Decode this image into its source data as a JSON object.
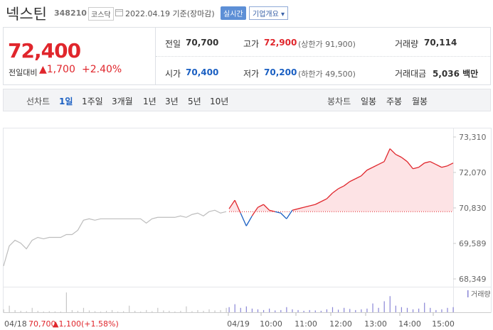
{
  "header": {
    "title": "넥스틴",
    "code": "348210",
    "market": "코스닥",
    "date": "2022.04.19 기준(장마감)",
    "realtime": "실시간",
    "company": "기업개요"
  },
  "summary": {
    "price": "72,400",
    "change_label": "전일대비",
    "change": "▲1,700",
    "change_pct": "+2.40%",
    "rows": [
      [
        {
          "label": "전일",
          "value": "70,700"
        },
        {
          "label": "고가",
          "value": "72,900",
          "note": "(상한가 91,900)"
        },
        {
          "label": "거래량",
          "value": "70,114"
        }
      ],
      [
        {
          "label": "시가",
          "value": "70,400"
        },
        {
          "label": "저가",
          "value": "70,200",
          "note": "(하한가 49,500)"
        },
        {
          "label": "거래대금",
          "value": "5,036 백만"
        }
      ]
    ]
  },
  "tabs": {
    "line_label": "선차트",
    "line": [
      "1일",
      "1주일",
      "3개월",
      "1년",
      "3년",
      "5년",
      "10년"
    ],
    "candle_label": "봉차트",
    "candle": [
      "일봉",
      "주봉",
      "월봉"
    ]
  },
  "chart_data": {
    "type": "line",
    "ylim": [
      68349,
      73310
    ],
    "yticks": [
      {
        "value": 73310,
        "label": "73,310"
      },
      {
        "value": 72070,
        "label": "72,070"
      },
      {
        "value": 70830,
        "label": "70,830"
      },
      {
        "value": 69589,
        "label": "69,589"
      },
      {
        "value": 68349,
        "label": "68,349"
      }
    ],
    "prev_close": 70700,
    "prev_day": [
      68800,
      69500,
      69700,
      69600,
      69400,
      69700,
      69800,
      69750,
      69800,
      69800,
      69800,
      69900,
      69900,
      70050,
      70400,
      70450,
      70400,
      70450,
      70450,
      70450,
      70450,
      70450,
      70450,
      70450,
      70450,
      70300,
      70450,
      70500,
      70500,
      70500,
      70500,
      70550,
      70500,
      70600,
      70650,
      70550,
      70700,
      70750,
      70650,
      70700
    ],
    "today": [
      70800,
      71100,
      70650,
      70200,
      70550,
      70850,
      70950,
      70750,
      70700,
      70650,
      70450,
      70750,
      70800,
      70850,
      70900,
      70950,
      71050,
      71150,
      71350,
      71500,
      71600,
      71750,
      71850,
      71950,
      72150,
      72250,
      72350,
      72450,
      72900,
      72700,
      72600,
      72450,
      72200,
      72250,
      72400,
      72450,
      72350,
      72250,
      72300,
      72400
    ],
    "volume": {
      "label": "거래량",
      "ylim": [
        0,
        3000
      ],
      "prev_day": [
        400,
        900,
        300,
        200,
        150,
        600,
        200,
        100,
        150,
        120,
        100,
        2700,
        300,
        200,
        600,
        250,
        150,
        100,
        200,
        300,
        100,
        150,
        900,
        200,
        100,
        300,
        150,
        600,
        250,
        200,
        100,
        200,
        800,
        150,
        300,
        200,
        400,
        250,
        300,
        600
      ],
      "today": [
        700,
        1100,
        600,
        800,
        500,
        400,
        300,
        500,
        250,
        300,
        700,
        400,
        300,
        200,
        300,
        250,
        200,
        400,
        700,
        350,
        600,
        450,
        300,
        400,
        500,
        1200,
        600,
        1500,
        2200,
        900,
        700,
        600,
        400,
        500,
        1300,
        600,
        300,
        400,
        600,
        700
      ]
    },
    "footer": {
      "date": "04/18",
      "price": "70,700",
      "change": "▲1,100",
      "pct": "(+1.58%)"
    },
    "x_labels": [
      "04/19",
      "10:00",
      "11:00",
      "12:00",
      "13:00",
      "14:00",
      "15:00"
    ]
  }
}
